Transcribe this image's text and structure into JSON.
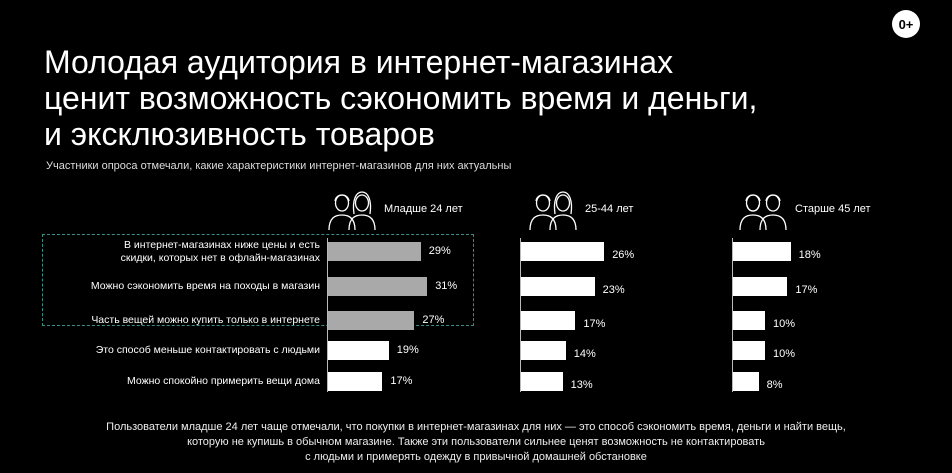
{
  "badge": "0+",
  "title_lines": [
    "Молодая аудитория в интернет-магазинах",
    "ценит возможность сэкономить время и деньги,",
    "и эксклюзивность товаров"
  ],
  "subtitle": "Участники опроса отмечали, какие характеристики интернет-магазинов для них актуальны",
  "footnote_lines": [
    "Пользователи младше 24 лет чаще отмечали, что покупки в интернет-магазинах для них — это способ сэкономить время, деньги и найти вещь,",
    "которую не купишь в обычном магазине. Также эти пользователи сильнее ценят возможность не контактировать",
    "с людьми и примерять одежду в привычной домашней обстановке"
  ],
  "colors": {
    "background": "#000000",
    "bar_highlight": "#a9a9a9",
    "bar_default": "#ffffff",
    "highlight_border": "#3c8f87"
  },
  "chart_data": {
    "type": "bar",
    "orientation": "horizontal",
    "categories": [
      "В интернет-магазинах ниже цены и есть скидки, которых нет в офлайн-магазинах",
      "Можно сэкономить время на походы в магазин",
      "Часть вещей можно купить только в интернете",
      "Это способ меньше контактировать с людьми",
      "Можно спокойно примерить вещи дома"
    ],
    "category_display": [
      [
        "В интернет-магазинах ниже цены и есть",
        "скидки, которых нет в офлайн-магазинах"
      ],
      [
        "Можно сэкономить время на походы в магазин"
      ],
      [
        "Часть вещей можно купить только в интернете"
      ],
      [
        "Это способ меньше контактировать с людьми"
      ],
      [
        "Можно спокойно примерить вещи дома"
      ]
    ],
    "highlighted_categories": [
      0,
      1,
      2
    ],
    "unit": "%",
    "series": [
      {
        "name": "Младше 24 лет",
        "values": [
          29,
          31,
          27,
          19,
          17
        ]
      },
      {
        "name": "25-44 лет",
        "values": [
          26,
          23,
          17,
          14,
          13
        ]
      },
      {
        "name": "Старше 45 лет",
        "values": [
          18,
          17,
          10,
          10,
          8
        ]
      }
    ],
    "value_labels": [
      [
        "29%",
        "31%",
        "27%",
        "19%",
        "17%"
      ],
      [
        "26%",
        "23%",
        "17%",
        "14%",
        "13%"
      ],
      [
        "18%",
        "17%",
        "10%",
        "10%",
        "8%"
      ]
    ],
    "panel_icons": [
      "young-people-icon",
      "adult-people-icon",
      "senior-people-icon"
    ]
  }
}
